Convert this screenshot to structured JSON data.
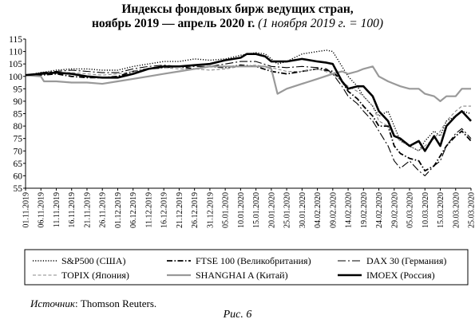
{
  "title_line1": "Индексы фондовых бирж ведущих стран,",
  "title_line2_main": "ноябрь 2019 — апрель 2020 г.",
  "title_line2_note": "(1 ноября 2019 г. = 100)",
  "source_label": "Источник",
  "source_text": ": Thomson Reuters.",
  "caption": "Рис. 6",
  "chart_data": {
    "type": "line",
    "xlabel": "",
    "ylabel": "",
    "ylim": [
      55,
      115
    ],
    "yticks": [
      55,
      60,
      65,
      70,
      75,
      80,
      85,
      90,
      95,
      100,
      105,
      110,
      115
    ],
    "grid": false,
    "legend_position": "bottom",
    "x_tick_labels": [
      "01.11.2019",
      "06.11.2019",
      "11.11.2019",
      "16.11.2019",
      "21.11.2019",
      "26.11.2019",
      "01.12.2019",
      "06.12.2019",
      "11.12.2019",
      "16.12.2019",
      "21.12.2019",
      "26.12.2019",
      "31.12.2019",
      "05.01.2020",
      "10.01.2020",
      "15.01.2020",
      "20.01.2020",
      "25.01.2020",
      "30.01.2020",
      "04.02.2020",
      "09.02.2020",
      "14.02.2020",
      "19.02.2020",
      "24.02.2020",
      "29.02.2020",
      "05.03.2020",
      "10.03.2020",
      "15.03.2020",
      "20.03.2020",
      "25.03.2020"
    ],
    "series": [
      {
        "name": "S&P500 (США)",
        "style": "dotted",
        "color": "#000000",
        "x": [
          0,
          5,
          10,
          15,
          20,
          25,
          30,
          35,
          40,
          45,
          50,
          55,
          60,
          65,
          70,
          75,
          78,
          80,
          82,
          85,
          90,
          95,
          98,
          100,
          103,
          105,
          108,
          110,
          113,
          115,
          118,
          120,
          122,
          125,
          128,
          130,
          133,
          135,
          137,
          140,
          142,
          145
        ],
        "y": [
          100.5,
          101.5,
          102.5,
          103,
          103,
          102.5,
          102.5,
          104,
          105,
          106,
          106,
          107,
          106.5,
          107,
          108.5,
          109.5,
          109,
          107,
          105,
          106,
          109,
          110,
          110.5,
          110,
          104,
          100,
          96,
          92,
          88,
          84,
          86,
          80,
          74,
          72,
          70,
          74,
          78,
          76,
          82,
          84,
          86,
          85
        ]
      },
      {
        "name": "FTSE 100 (Великобритания)",
        "style": "dash-dot",
        "color": "#000000",
        "x": [
          0,
          5,
          10,
          15,
          20,
          25,
          30,
          35,
          40,
          45,
          50,
          55,
          60,
          65,
          70,
          75,
          80,
          85,
          90,
          95,
          100,
          103,
          105,
          108,
          110,
          113,
          115,
          118,
          120,
          122,
          125,
          128,
          130,
          133,
          135,
          137,
          140,
          142,
          145
        ],
        "y": [
          100.5,
          100.5,
          101,
          100,
          99.5,
          99.5,
          100,
          102,
          103,
          103.5,
          104,
          103,
          104,
          103.5,
          104.5,
          104,
          102,
          101,
          102,
          103,
          102,
          98,
          94,
          91,
          88,
          84,
          80,
          80,
          72,
          69,
          67,
          66,
          62,
          64,
          68,
          72,
          76,
          78,
          74
        ]
      },
      {
        "name": "DAX 30 (Германия)",
        "style": "long-dash-dot",
        "color": "#000000",
        "x": [
          0,
          5,
          10,
          15,
          20,
          25,
          30,
          35,
          40,
          45,
          50,
          55,
          60,
          65,
          70,
          75,
          80,
          85,
          90,
          95,
          98,
          100,
          103,
          105,
          108,
          110,
          113,
          115,
          118,
          120,
          122,
          125,
          128,
          130,
          133,
          135,
          137,
          140,
          142,
          145
        ],
        "y": [
          100.5,
          101.5,
          102,
          102.5,
          102,
          101.5,
          101.5,
          103,
          104,
          104.5,
          104,
          104,
          104,
          105,
          106,
          106,
          104,
          103.5,
          104,
          103.5,
          103,
          101,
          96,
          92,
          89,
          86,
          82,
          78,
          72,
          66,
          63,
          66,
          62,
          60,
          64,
          66,
          72,
          77,
          79,
          75
        ]
      },
      {
        "name": "TOPIX (Япония)",
        "style": "dashed",
        "color": "#888888",
        "x": [
          0,
          5,
          10,
          15,
          20,
          25,
          30,
          35,
          40,
          45,
          50,
          55,
          60,
          65,
          70,
          75,
          80,
          85,
          90,
          95,
          100,
          103,
          105,
          108,
          110,
          113,
          115,
          118,
          120,
          122,
          125,
          128,
          130,
          133,
          135,
          137,
          140,
          142,
          145
        ],
        "y": [
          100.5,
          101,
          101.5,
          101.5,
          101,
          100.5,
          101,
          102,
          103,
          103.5,
          103,
          103,
          102.5,
          103,
          104,
          104.5,
          103.5,
          102,
          102,
          103,
          101,
          98,
          96,
          94,
          92,
          88,
          82,
          80,
          76,
          74,
          72,
          70,
          72,
          75,
          78,
          82,
          86,
          88,
          88
        ]
      },
      {
        "name": "SHANGHAI A (Китай)",
        "style": "solid",
        "color": "#999999",
        "x": [
          0,
          5,
          6,
          10,
          15,
          20,
          25,
          30,
          35,
          40,
          45,
          50,
          55,
          60,
          65,
          70,
          75,
          78,
          80,
          82,
          85,
          90,
          95,
          100,
          103,
          105,
          108,
          110,
          113,
          115,
          118,
          120,
          122,
          125,
          128,
          130,
          133,
          135,
          137,
          140,
          142,
          145
        ],
        "y": [
          100.5,
          100,
          98,
          98,
          97.5,
          97.5,
          97,
          98,
          99,
          100,
          101,
          102,
          103,
          104,
          104,
          104,
          104,
          104,
          103,
          93,
          95,
          97,
          99,
          101,
          102,
          101,
          102,
          103,
          104,
          100,
          98,
          97,
          96,
          95,
          95,
          93,
          92,
          90,
          92,
          92,
          95,
          95
        ]
      },
      {
        "name": "IMOEX (Россия)",
        "style": "solid-bold",
        "color": "#000000",
        "x": [
          0,
          5,
          10,
          15,
          20,
          25,
          30,
          35,
          40,
          45,
          50,
          55,
          60,
          65,
          70,
          72,
          75,
          78,
          80,
          85,
          90,
          95,
          98,
          100,
          103,
          105,
          108,
          110,
          113,
          115,
          118,
          120,
          122,
          125,
          128,
          130,
          133,
          135,
          137,
          140,
          142,
          145
        ],
        "y": [
          100.5,
          101,
          101.5,
          101,
          100,
          99.5,
          99.5,
          101,
          103,
          104,
          104,
          104.5,
          105,
          106.5,
          107.5,
          109,
          109,
          108,
          106,
          106,
          107,
          106,
          105.5,
          105,
          98,
          95,
          96,
          96,
          92,
          86,
          82,
          76,
          75,
          72,
          74,
          70,
          76,
          72,
          80,
          84,
          86,
          82
        ]
      }
    ]
  }
}
